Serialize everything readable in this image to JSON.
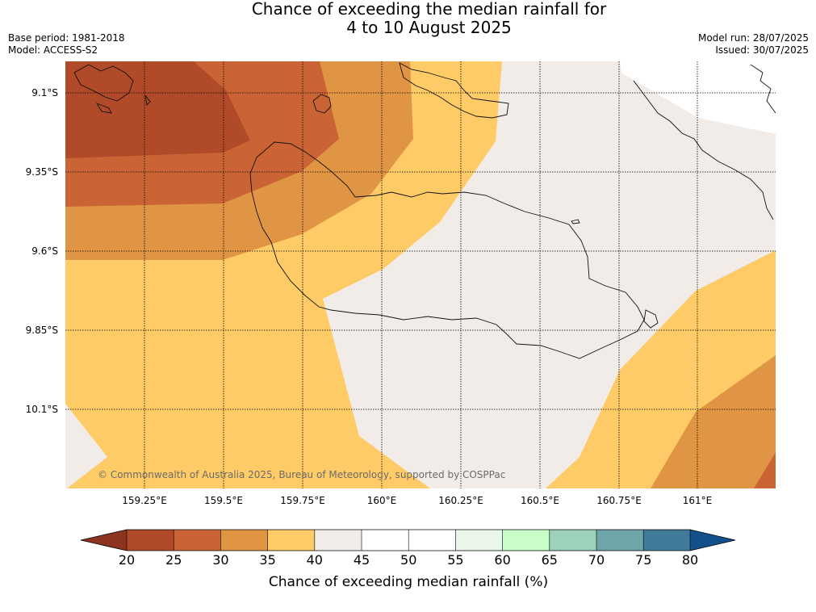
{
  "title": {
    "line1": "Chance of exceeding the median rainfall for",
    "line2": "4 to 10 August 2025"
  },
  "meta_left": {
    "base_period": "Base period: 1981-2018",
    "model": "Model: ACCESS-S2"
  },
  "meta_right": {
    "model_run": "Model run: 28/07/2025",
    "issued": "Issued: 30/07/2025"
  },
  "copyright": "© Commonwealth of Australia 2025, Bureau of Meteorology, supported by COSPPac",
  "map": {
    "lat_ticks": [
      "9.1°S",
      "9.35°S",
      "9.6°S",
      "9.85°S",
      "10.1°S"
    ],
    "lon_ticks": [
      "159.25°E",
      "159.5°E",
      "159.75°E",
      "160°E",
      "160.25°E",
      "160.5°E",
      "160.75°E",
      "161°E"
    ]
  },
  "colorbar": {
    "title": "Chance of exceeding median rainfall (%)",
    "labels": [
      "20",
      "25",
      "30",
      "35",
      "40",
      "45",
      "50",
      "55",
      "60",
      "65",
      "70",
      "75",
      "80"
    ],
    "colors": {
      "lt20": "#8c3420",
      "20-25": "#b04a28",
      "25-30": "#ca6434",
      "30-35": "#e09545",
      "35-40": "#fecb66",
      "40-45": "#f1ece8",
      "45-50": "#ffffff",
      "50-55": "#ffffff",
      "55-60": "#e9f6e9",
      "60-65": "#c8fdc8",
      "65-70": "#9bd2b9",
      "70-75": "#6fa5a8",
      "75-80": "#417b9a",
      "gt80": "#12508c"
    }
  }
}
